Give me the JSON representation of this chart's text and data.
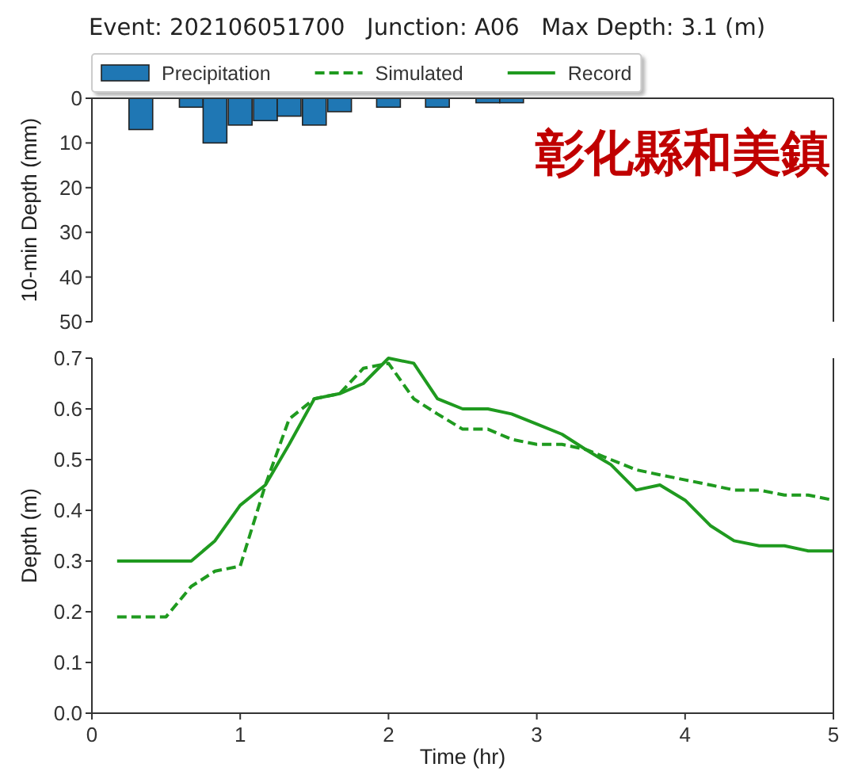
{
  "chart_data": [
    {
      "type": "bar",
      "title": "Event: 202106051700   Junction: A06   Max Depth: 3.1 (m)",
      "ylabel": "10-min Depth (mm)",
      "x": [
        0.33,
        0.67,
        0.83,
        1,
        1.17,
        1.33,
        1.5,
        1.67,
        2,
        2.33,
        2.67,
        2.83
      ],
      "series": [
        {
          "name": "Precipitation",
          "color": "#1f77b4",
          "values": [
            7,
            2,
            10,
            6,
            5,
            4,
            6,
            3,
            2,
            2,
            1,
            1
          ]
        }
      ],
      "xlim": [
        0,
        5
      ],
      "ylim": [
        50,
        0
      ],
      "yticks": [
        0,
        10,
        20,
        30,
        40,
        50
      ],
      "tick_labels": "y",
      "legend": "top left",
      "annotations": [
        "彰化縣和美鎮"
      ]
    },
    {
      "type": "line",
      "xlabel": "Time (hr)",
      "ylabel": "Depth (m)",
      "x": [
        0.17,
        0.33,
        0.5,
        0.67,
        0.83,
        1,
        1.17,
        1.33,
        1.5,
        1.67,
        1.83,
        2,
        2.17,
        2.33,
        2.5,
        2.67,
        2.83,
        3,
        3.17,
        3.33,
        3.5,
        3.67,
        3.83,
        4,
        4.17,
        4.33,
        4.5,
        4.67,
        4.83,
        5
      ],
      "series": [
        {
          "name": "Simulated",
          "color": "#1f9a1f",
          "line_style": "dashed",
          "values": [
            0.19,
            0.19,
            0.19,
            0.25,
            0.28,
            0.29,
            0.45,
            0.58,
            0.62,
            0.63,
            0.68,
            0.69,
            0.62,
            0.59,
            0.56,
            0.56,
            0.54,
            0.53,
            0.53,
            0.52,
            0.5,
            0.48,
            0.47,
            0.46,
            0.45,
            0.44,
            0.44,
            0.43,
            0.43,
            0.42
          ]
        },
        {
          "name": "Record",
          "color": "#1f9a1f",
          "line_style": "solid",
          "values": [
            0.3,
            0.3,
            0.3,
            0.3,
            0.34,
            0.41,
            0.45,
            0.53,
            0.62,
            0.63,
            0.65,
            0.7,
            0.69,
            0.62,
            0.6,
            0.6,
            0.59,
            0.57,
            0.55,
            0.52,
            0.49,
            0.44,
            0.45,
            0.42,
            0.37,
            0.34,
            0.33,
            0.33,
            0.32,
            0.32
          ]
        }
      ],
      "xlim": [
        0,
        5
      ],
      "ylim": [
        0,
        0.7
      ],
      "xticks": [
        0,
        1,
        2,
        3,
        4,
        5
      ],
      "yticks": [
        {
          "value": 0,
          "label": "0.0"
        },
        0.1,
        0.2,
        0.3,
        0.4,
        0.5,
        0.6,
        0.7
      ]
    }
  ]
}
